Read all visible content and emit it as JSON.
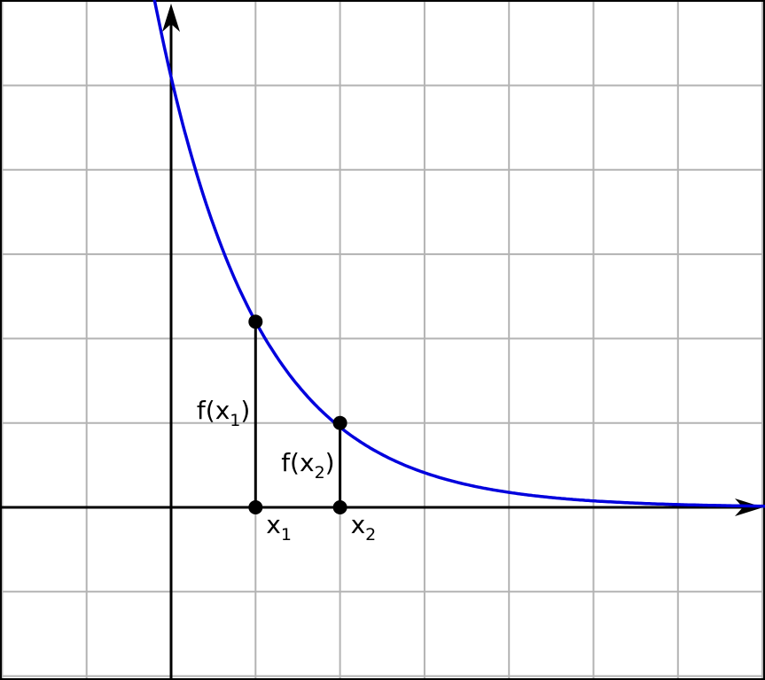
{
  "diagram": {
    "function_description": "decreasing exponential curve crossing the y-axis and approaching the x-axis",
    "curve_color": "#0000dd",
    "grid_color": "#b3b3b3",
    "axis_color": "#000000",
    "grid": true,
    "x_range": [
      -2,
      7
    ],
    "y_range": [
      -2,
      6
    ],
    "curve": {
      "a": 5.1,
      "k": 0.84
    },
    "points": [
      {
        "id": "x1",
        "x": 1,
        "y": 2.2,
        "x_label": "x",
        "x_sub": "1",
        "f_label_pre": "f(x",
        "f_sub": "1",
        "f_label_post": ")"
      },
      {
        "id": "x2",
        "x": 2,
        "y": 1.0,
        "x_label": "x",
        "x_sub": "2",
        "f_label_pre": "f(x",
        "f_sub": "2",
        "f_label_post": ")"
      }
    ]
  }
}
